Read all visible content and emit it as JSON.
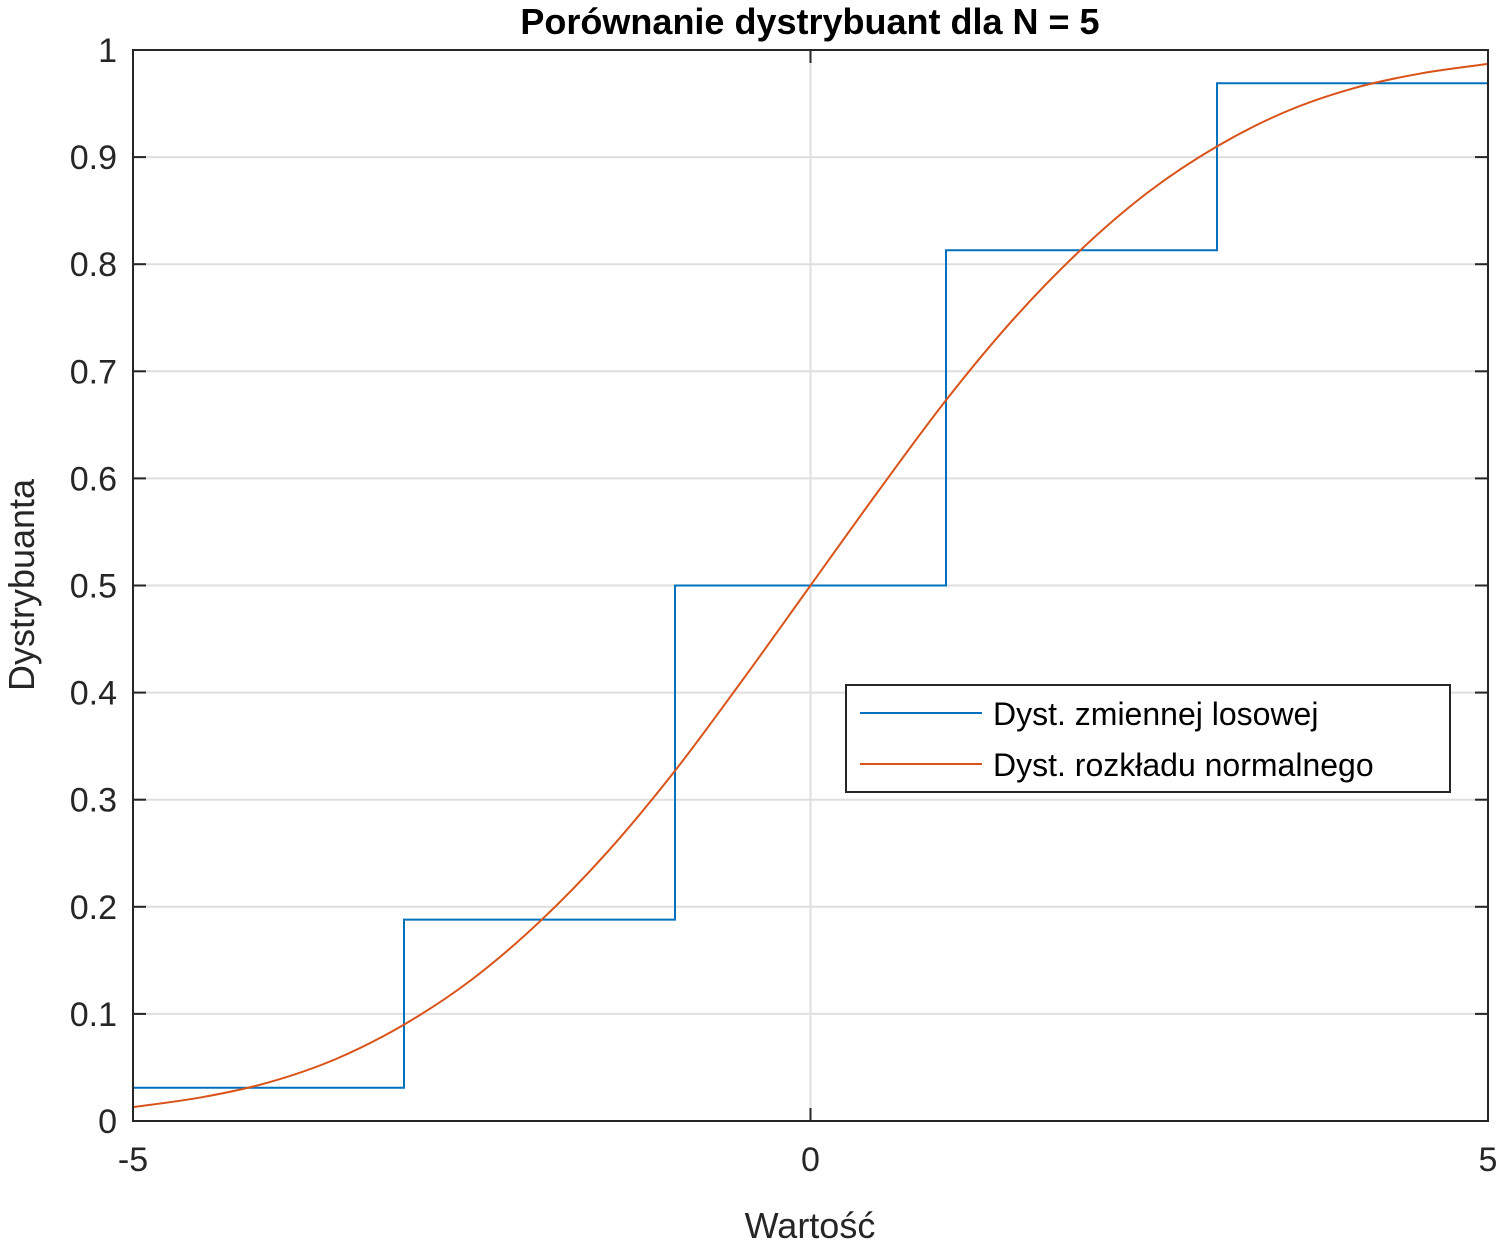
{
  "chart_data": {
    "type": "line",
    "title": "Porównanie dystrybuant dla N = 5",
    "xlabel": "Wartość",
    "ylabel": "Dystrybuanta",
    "xlim": [
      -5,
      5
    ],
    "ylim": [
      0,
      1
    ],
    "x_ticks": [
      -5,
      0,
      5
    ],
    "x_tick_labels": [
      "-5",
      "0",
      "5"
    ],
    "y_ticks": [
      0,
      0.1,
      0.2,
      0.3,
      0.4,
      0.5,
      0.6,
      0.7,
      0.8,
      0.9,
      1
    ],
    "y_tick_labels": [
      "0",
      "0.1",
      "0.2",
      "0.3",
      "0.4",
      "0.5",
      "0.6",
      "0.7",
      "0.8",
      "0.9",
      "1"
    ],
    "grid": true,
    "legend_position": "right",
    "series": [
      {
        "name": "Dyst. zmiennej losowej",
        "color": "#0072bd",
        "style": "stairs",
        "x": [
          -5,
          -5,
          -3,
          -3,
          -1,
          -1,
          1,
          1,
          3,
          3,
          5,
          5
        ],
        "y": [
          0,
          0.031,
          0.031,
          0.188,
          0.188,
          0.5,
          0.5,
          0.813,
          0.813,
          0.969,
          0.969,
          1
        ]
      },
      {
        "name": "Dyst. rozkładu normalnego",
        "color": "#d95319",
        "style": "smooth",
        "x": [
          -5,
          -4.5,
          -4,
          -3.5,
          -3,
          -2.5,
          -2,
          -1.5,
          -1,
          -0.5,
          0,
          0.5,
          1,
          1.5,
          2,
          2.5,
          3,
          3.5,
          4,
          4.5,
          5
        ],
        "y": [
          0.013,
          0.022,
          0.036,
          0.058,
          0.09,
          0.132,
          0.186,
          0.251,
          0.327,
          0.412,
          0.5,
          0.588,
          0.673,
          0.749,
          0.814,
          0.868,
          0.91,
          0.942,
          0.964,
          0.978,
          0.987
        ]
      }
    ]
  }
}
